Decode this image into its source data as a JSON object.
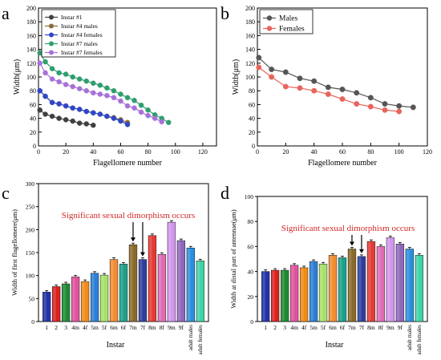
{
  "chart_data": [
    {
      "panel": "a",
      "type": "line",
      "xlabel": "Flagellomere number",
      "ylabel": "Width(μm)",
      "xlim": [
        0,
        130
      ],
      "ylim": [
        0,
        200
      ],
      "xticks": [
        0,
        20,
        40,
        60,
        80,
        100,
        120
      ],
      "yticks": [
        0,
        20,
        40,
        60,
        80,
        100,
        120,
        140,
        160,
        180,
        200
      ],
      "legend": "top-left",
      "series": [
        {
          "name": "Instar #1",
          "color": "#404040",
          "x": [
            1,
            5,
            10,
            15,
            20,
            25,
            30,
            35,
            40
          ],
          "y": [
            52,
            46,
            43,
            40,
            38,
            36,
            33,
            32,
            30
          ]
        },
        {
          "name": "Instar #4 males",
          "color": "#8B6A3E",
          "x": [
            1,
            5,
            10,
            15,
            20,
            25,
            30,
            35,
            40,
            45,
            50,
            55,
            60,
            65
          ],
          "y": [
            80,
            72,
            63,
            61,
            58,
            55,
            53,
            50,
            48,
            46,
            43,
            41,
            38,
            34
          ]
        },
        {
          "name": "Instar #4 females",
          "color": "#2F47C8",
          "x": [
            1,
            5,
            10,
            15,
            20,
            25,
            30,
            35,
            40,
            45,
            50,
            55,
            60,
            65
          ],
          "y": [
            80,
            72,
            63,
            61,
            58,
            55,
            53,
            50,
            48,
            46,
            43,
            40,
            36,
            31
          ]
        },
        {
          "name": "Instar #7 males",
          "color": "#2E9E6E",
          "x": [
            1,
            5,
            10,
            15,
            20,
            25,
            30,
            35,
            40,
            45,
            50,
            55,
            60,
            65,
            70,
            75,
            80,
            85,
            90,
            95
          ],
          "y": [
            135,
            122,
            112,
            106,
            104,
            100,
            97,
            94,
            91,
            88,
            84,
            80,
            75,
            70,
            66,
            59,
            52,
            45,
            40,
            34
          ]
        },
        {
          "name": "Instar #7 females",
          "color": "#A772D8",
          "x": [
            1,
            5,
            10,
            15,
            20,
            25,
            30,
            35,
            40,
            45,
            50,
            55,
            60,
            65,
            70,
            75,
            80,
            85,
            90
          ],
          "y": [
            120,
            106,
            97,
            93,
            89,
            86,
            83,
            80,
            77,
            75,
            73,
            70,
            65,
            58,
            55,
            49,
            44,
            40,
            35
          ]
        }
      ]
    },
    {
      "panel": "b",
      "type": "line",
      "xlabel": "Flagellomere number",
      "ylabel": "Width(μm)",
      "xlim": [
        0,
        120
      ],
      "ylim": [
        0,
        200
      ],
      "xticks": [
        0,
        20,
        40,
        60,
        80,
        100,
        120
      ],
      "yticks": [
        0,
        20,
        40,
        60,
        80,
        100,
        120,
        140,
        160,
        180,
        200
      ],
      "legend": "top-left",
      "series": [
        {
          "name": "Males",
          "color": "#555555",
          "x": [
            1,
            10,
            20,
            30,
            40,
            50,
            60,
            70,
            80,
            90,
            100,
            110
          ],
          "y": [
            128,
            111,
            107,
            98,
            94,
            85,
            82,
            77,
            70,
            61,
            58,
            56
          ]
        },
        {
          "name": "Females",
          "color": "#E8645C",
          "x": [
            1,
            10,
            20,
            30,
            40,
            50,
            60,
            70,
            80,
            90,
            100
          ],
          "y": [
            114,
            100,
            86,
            84,
            80,
            75,
            68,
            61,
            57,
            52,
            50
          ]
        }
      ]
    },
    {
      "panel": "c",
      "type": "bar",
      "xlabel": "Instar",
      "ylabel": "Width of first flagellomere(μm)",
      "ylim": [
        0,
        300
      ],
      "yticks": [
        0,
        50,
        100,
        150,
        200,
        250,
        300
      ],
      "annotation": "Significant sexual dimorphism occurs",
      "categories": [
        "1",
        "2",
        "3",
        "4m",
        "4f",
        "5m",
        "5f",
        "6m",
        "6f",
        "7m",
        "7f",
        "8m",
        "8f",
        "9m",
        "9f",
        "adult males",
        "adult females"
      ],
      "values": [
        64,
        76,
        82,
        97,
        87,
        105,
        101,
        135,
        125,
        167,
        135,
        187,
        146,
        216,
        176,
        160,
        132
      ],
      "colors": [
        "#2433a8",
        "#d9221e",
        "#1e8a35",
        "#e0529c",
        "#f08b18",
        "#2a7fd6",
        "#a8e06a",
        "#f28c30",
        "#1aa08a",
        "#8a6a28",
        "#2f3d9e",
        "#e53a35",
        "#e06ab4",
        "#d296ee",
        "#8f66bd",
        "#2a8fe0",
        "#3fd2a6"
      ]
    },
    {
      "panel": "d",
      "type": "bar",
      "xlabel": "Instar",
      "ylabel": "Width at distal part of antennae(μm)",
      "ylim": [
        0,
        100
      ],
      "yticks": [
        0,
        20,
        40,
        60,
        80,
        100
      ],
      "annotation": "Significant sexual dimorphism occurs",
      "categories": [
        "1",
        "2",
        "3",
        "4m",
        "4f",
        "5m",
        "5f",
        "6m",
        "6f",
        "7m",
        "7f",
        "8m",
        "8f",
        "9m",
        "9f",
        "adult males",
        "adult females"
      ],
      "values": [
        40,
        41,
        41,
        45,
        43,
        48,
        46,
        53,
        51,
        58,
        52,
        64,
        60,
        67,
        62,
        58,
        53
      ],
      "colors": [
        "#2433a8",
        "#d9221e",
        "#1e8a35",
        "#e0529c",
        "#f08b18",
        "#2a7fd6",
        "#a8e06a",
        "#f28c30",
        "#1aa08a",
        "#8a6a28",
        "#2f3d9e",
        "#e53a35",
        "#e06ab4",
        "#d296ee",
        "#8f66bd",
        "#2a8fe0",
        "#3fd2a6"
      ]
    }
  ],
  "panel_letters": {
    "a": "a",
    "b": "b",
    "c": "c",
    "d": "d"
  }
}
